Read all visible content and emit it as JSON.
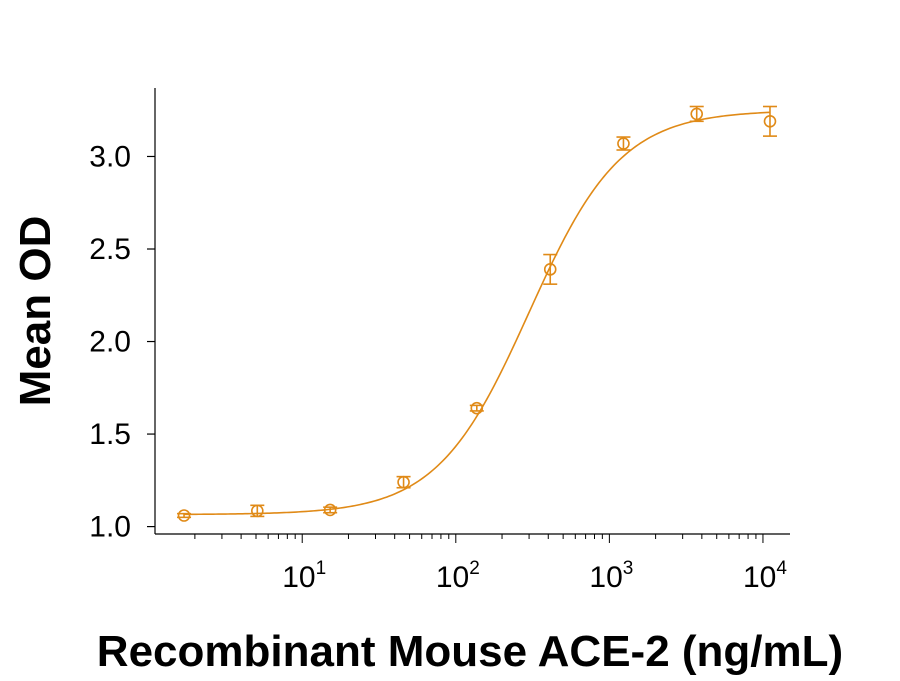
{
  "chart_data": {
    "type": "scatter",
    "title": "",
    "xlabel": "Recombinant Mouse ACE-2 (ng/mL)",
    "ylabel": "Mean OD",
    "xscale": "log",
    "xlim": [
      1.1,
      15000
    ],
    "ylim": [
      0.96,
      3.37
    ],
    "x_ticks": [
      {
        "value": 10,
        "base": "10",
        "exp": "1"
      },
      {
        "value": 100,
        "base": "10",
        "exp": "2"
      },
      {
        "value": 1000,
        "base": "10",
        "exp": "3"
      },
      {
        "value": 10000,
        "base": "10",
        "exp": "4"
      }
    ],
    "y_ticks": [
      {
        "value": 1.0,
        "label": "1.0"
      },
      {
        "value": 1.5,
        "label": "1.5"
      },
      {
        "value": 2.0,
        "label": "2.0"
      },
      {
        "value": 2.5,
        "label": "2.5"
      },
      {
        "value": 3.0,
        "label": "3.0"
      }
    ],
    "series": [
      {
        "name": "Mean OD",
        "color": "#E08A17",
        "points": [
          {
            "x": 1.7,
            "y": 1.06,
            "err": 0.01
          },
          {
            "x": 5.1,
            "y": 1.085,
            "err": 0.03
          },
          {
            "x": 15.2,
            "y": 1.09,
            "err": 0.015
          },
          {
            "x": 45.7,
            "y": 1.24,
            "err": 0.03
          },
          {
            "x": 137,
            "y": 1.64,
            "err": 0.015
          },
          {
            "x": 412,
            "y": 2.39,
            "err": 0.08
          },
          {
            "x": 1235,
            "y": 3.07,
            "err": 0.035
          },
          {
            "x": 3704,
            "y": 3.23,
            "err": 0.04
          },
          {
            "x": 11111,
            "y": 3.19,
            "err": 0.08
          }
        ]
      }
    ],
    "fit": {
      "type": "4PL",
      "bottom": 1.065,
      "top": 3.25,
      "ec50": 300,
      "hill": 1.45
    }
  }
}
